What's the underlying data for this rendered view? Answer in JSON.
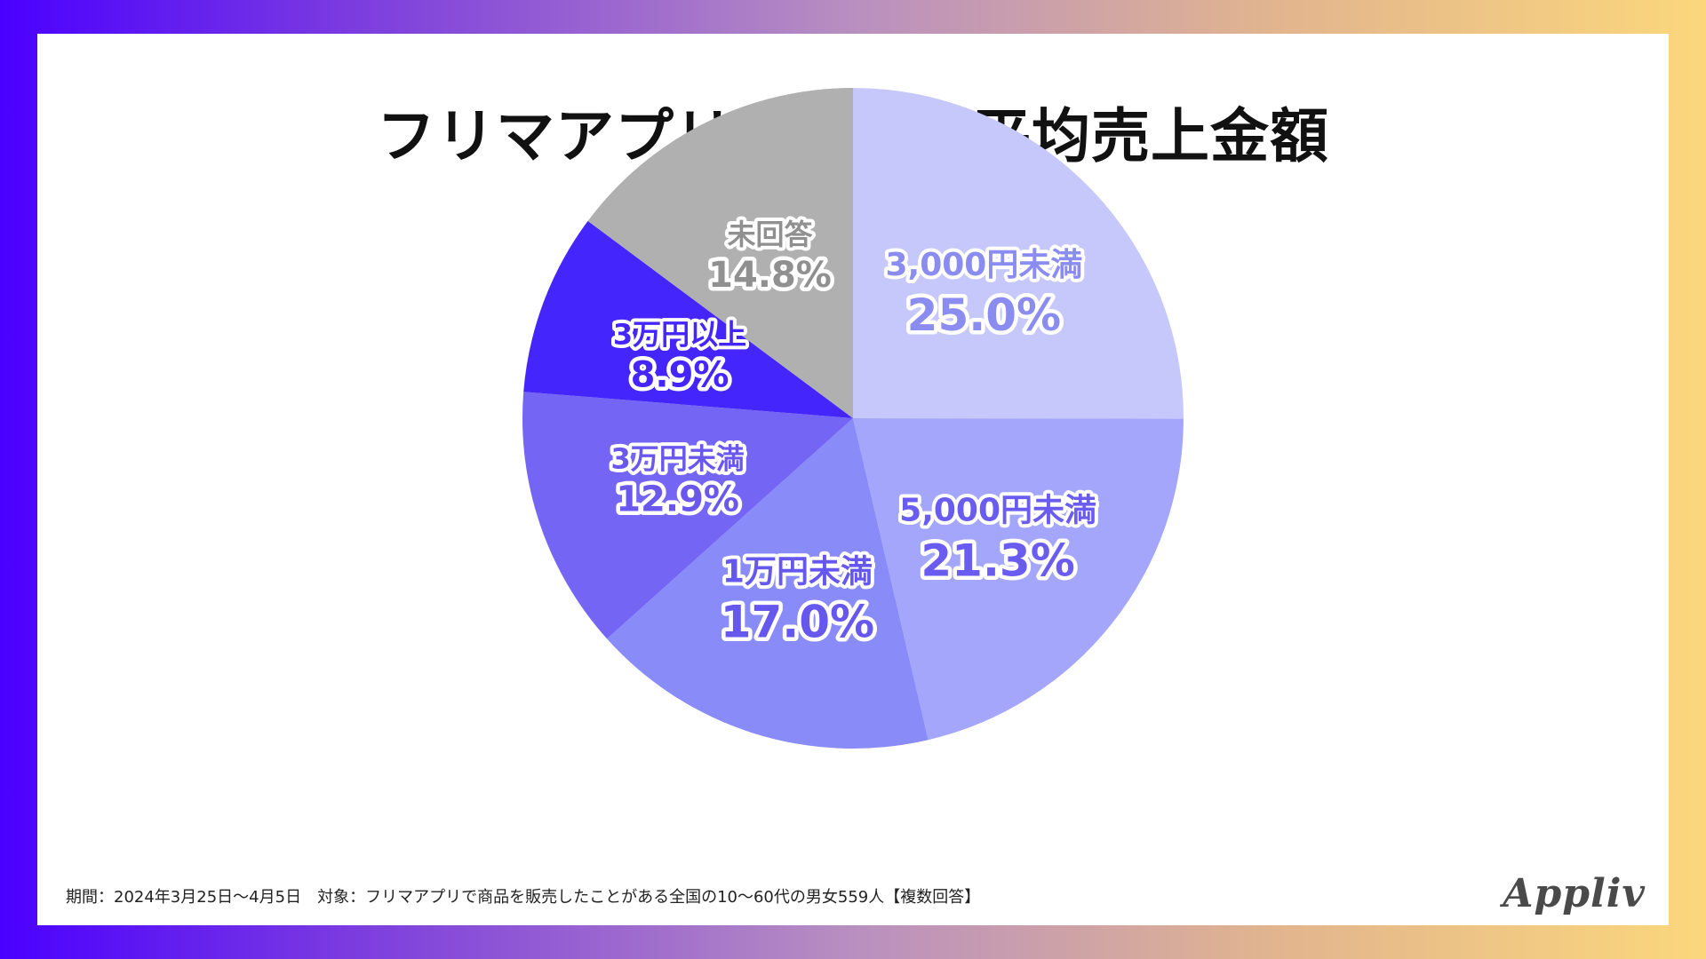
{
  "title": "フリマアプリでの年間平均売上金額",
  "footnote": "期間：2024年3月25日～4月5日　対象：フリマアプリで商品を販売したことがある全国の10～60代の男女559人【複数回答】",
  "logo_text": "Appliv",
  "colors": {
    "text_dark": "#111111"
  },
  "chart_data": {
    "type": "pie",
    "title": "フリマアプリでの年間平均売上金額",
    "start": "12 o'clock, clockwise",
    "slices": [
      {
        "label": "3,000円未満",
        "value": 25.0,
        "display": "25.0%",
        "color": "#c6c8fb",
        "text_color": "#8a8cf0"
      },
      {
        "label": "5,000円未満",
        "value": 21.3,
        "display": "21.3%",
        "color": "#a3a6fb",
        "text_color": "#6a5cf0"
      },
      {
        "label": "1万円未満",
        "value": 17.0,
        "display": "17.0%",
        "color": "#888bf8",
        "text_color": "#6658ee"
      },
      {
        "label": "3万円未満",
        "value": 12.9,
        "display": "12.9%",
        "color": "#7565f5",
        "text_color": "#6a58ee"
      },
      {
        "label": "3万円以上",
        "value": 8.9,
        "display": "8.9%",
        "color": "#4426fc",
        "text_color": "#4426fc"
      },
      {
        "label": "未回答",
        "value": 14.8,
        "display": "14.8%",
        "color": "#b0b0b0",
        "text_color": "#909090"
      }
    ]
  }
}
